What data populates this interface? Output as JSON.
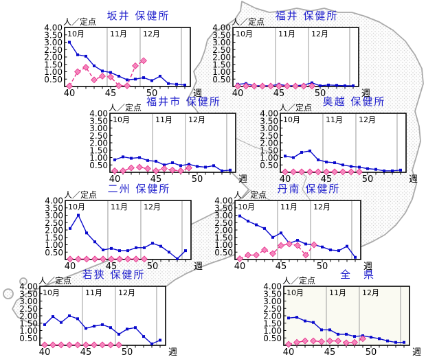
{
  "page": {
    "description_labels": {
      "unit_label": "人／定点",
      "week_label": "週"
    }
  },
  "colors": {
    "title_blue": "#2020cc",
    "series_blue": "#0a0acc",
    "series_pink": "#e62e8a",
    "month_grid": "#9a9a9a",
    "axis_black": "#000000",
    "map_outline": "#aaaaaa",
    "map_dot": "#c9c9c9",
    "zenken_plot_bg": "#fafaf2"
  },
  "axis": {
    "ylabel": "人／定点",
    "xlabel": "週",
    "ylim": [
      0,
      4.0
    ],
    "y_tick_labels": [
      "4.00",
      "3.50",
      "3.00",
      "2.50",
      "2.00",
      "1.50",
      "1.00",
      "0.50"
    ],
    "x_tick_labels": [
      "40",
      "45",
      "50"
    ],
    "x_tick_weeks": [
      40,
      45,
      50
    ],
    "month_labels": [
      "10月",
      "11月",
      "12月"
    ],
    "month_boundary_weeks": [
      44.58,
      48.58,
      53.58
    ],
    "weeks_blue": [
      40,
      54
    ],
    "weeks_pink": [
      40,
      49
    ]
  },
  "chart_data": [
    {
      "type": "line",
      "title": "坂井 保健所",
      "plot_bg": "#ffffff",
      "ylim": [
        0,
        4.0
      ],
      "ylabel": "人／定点",
      "xlabel": "週",
      "series": [
        {
          "name": "series-blue",
          "x_range": [
            40,
            54
          ],
          "values": [
            3.0,
            2.15,
            2.05,
            1.4,
            1.05,
            0.95,
            0.7,
            0.45,
            0.5,
            0.6,
            0.4,
            0.7,
            0.2,
            0.15,
            0.1
          ]
        },
        {
          "name": "series-pink",
          "x_range": [
            40,
            49
          ],
          "values": [
            0.02,
            1.0,
            1.3,
            0.45,
            0.7,
            0.65,
            0.05,
            0.05,
            1.4,
            1.75
          ]
        }
      ]
    },
    {
      "type": "line",
      "title": "福井 保健所",
      "plot_bg": "#ffffff",
      "ylim": [
        0,
        4.0
      ],
      "ylabel": "人／定点",
      "xlabel": "週",
      "series": [
        {
          "name": "series-blue",
          "x_range": [
            40,
            54
          ],
          "values": [
            0.15,
            0.2,
            0.05,
            0.05,
            0.05,
            0.15,
            0.05,
            0.05,
            0.1,
            0.25,
            0.05,
            0.1,
            0.08,
            0.05,
            0.05
          ]
        },
        {
          "name": "series-pink",
          "x_range": [
            40,
            49
          ],
          "values": [
            0.03,
            0.03,
            0.03,
            0.03,
            0.03,
            0.03,
            0.03,
            0.03,
            0.03,
            0.03
          ]
        }
      ]
    },
    {
      "type": "line",
      "title": "福井市 保健所",
      "plot_bg": "#ffffff",
      "ylim": [
        0,
        4.0
      ],
      "ylabel": "人／定点",
      "xlabel": "週",
      "series": [
        {
          "name": "series-blue",
          "x_range": [
            40,
            54
          ],
          "values": [
            0.85,
            1.05,
            0.95,
            1.0,
            0.8,
            0.75,
            0.5,
            0.65,
            0.45,
            0.55,
            0.4,
            0.35,
            0.45,
            0.1,
            0.15
          ]
        },
        {
          "name": "series-pink",
          "x_range": [
            40,
            49
          ],
          "values": [
            0.1,
            0.1,
            0.3,
            0.35,
            0.25,
            0.1,
            0.25,
            0.15,
            0.1,
            0.3
          ]
        }
      ]
    },
    {
      "type": "line",
      "title": "奥越 保健所",
      "plot_bg": "#ffffff",
      "ylim": [
        0,
        4.0
      ],
      "ylabel": "人／定点",
      "xlabel": "週",
      "series": [
        {
          "name": "series-blue",
          "x_range": [
            40,
            54
          ],
          "values": [
            1.1,
            1.0,
            1.35,
            1.45,
            0.85,
            0.7,
            0.65,
            0.5,
            0.4,
            0.35,
            0.25,
            0.2,
            0.1,
            0.1,
            0.15
          ]
        },
        {
          "name": "series-pink",
          "x_range": [
            40,
            49
          ],
          "values": [
            0.03,
            0.03,
            0.03,
            0.03,
            0.03,
            0.03,
            0.03,
            0.03,
            0.03,
            0.03
          ]
        }
      ]
    },
    {
      "type": "line",
      "title": "二州 保健所",
      "plot_bg": "#ffffff",
      "ylim": [
        0,
        4.0
      ],
      "ylabel": "人／定点",
      "xlabel": "週",
      "series": [
        {
          "name": "series-blue",
          "x_range": [
            40,
            54
          ],
          "values": [
            2.1,
            3.0,
            1.8,
            1.2,
            0.65,
            0.75,
            0.6,
            0.6,
            0.8,
            0.8,
            1.1,
            0.9,
            0.5,
            0.05,
            0.6
          ]
        },
        {
          "name": "series-pink",
          "x_range": [
            40,
            49
          ],
          "values": [
            0.03,
            0.03,
            0.03,
            0.03,
            0.03,
            0.03,
            0.03,
            0.03,
            0.03,
            0.03
          ]
        }
      ]
    },
    {
      "type": "line",
      "title": "丹南 保健所",
      "plot_bg": "#ffffff",
      "ylim": [
        0,
        4.0
      ],
      "ylabel": "人／定点",
      "xlabel": "週",
      "series": [
        {
          "name": "series-blue",
          "x_range": [
            40,
            54
          ],
          "values": [
            2.95,
            2.6,
            2.35,
            2.1,
            1.5,
            1.8,
            1.1,
            1.3,
            1.05,
            1.0,
            0.85,
            0.65,
            0.6,
            0.9,
            0.15
          ]
        },
        {
          "name": "series-pink",
          "x_range": [
            40,
            49
          ],
          "values": [
            0.05,
            0.3,
            0.3,
            0.65,
            0.4,
            0.95,
            1.05,
            0.95,
            0.3,
            1.0
          ]
        }
      ]
    },
    {
      "type": "line",
      "title": "若狭 保健所",
      "plot_bg": "#ffffff",
      "ylim": [
        0,
        4.0
      ],
      "ylabel": "人／定点",
      "xlabel": "週",
      "series": [
        {
          "name": "series-blue",
          "x_range": [
            40,
            54
          ],
          "values": [
            1.4,
            1.95,
            1.55,
            2.0,
            1.8,
            1.15,
            1.3,
            1.4,
            1.2,
            0.75,
            1.1,
            1.2,
            0.6,
            0.1,
            0.35
          ]
        },
        {
          "name": "series-pink",
          "x_range": [
            40,
            49
          ],
          "values": [
            0.03,
            0.03,
            0.03,
            0.03,
            0.03,
            0.03,
            0.03,
            0.03,
            0.03,
            0.03
          ]
        }
      ]
    },
    {
      "type": "line",
      "title": "全　県",
      "plot_bg": "#fafaf2",
      "ylim": [
        0,
        4.0
      ],
      "ylabel": "人／定点",
      "xlabel": "週",
      "series": [
        {
          "name": "series-blue",
          "x_range": [
            40,
            54
          ],
          "values": [
            1.85,
            1.9,
            1.65,
            1.55,
            1.05,
            1.05,
            0.75,
            0.75,
            0.6,
            0.65,
            0.55,
            0.45,
            0.3,
            0.2,
            0.2
          ]
        },
        {
          "name": "series-pink",
          "x_range": [
            40,
            49
          ],
          "values": [
            0.07,
            0.2,
            0.3,
            0.3,
            0.25,
            0.3,
            0.3,
            0.17,
            0.2,
            0.45
          ]
        }
      ]
    }
  ]
}
